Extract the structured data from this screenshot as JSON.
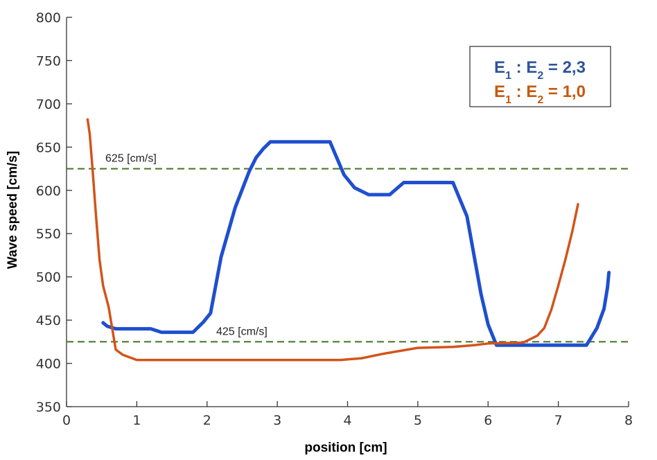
{
  "chart_data": {
    "type": "line",
    "title": "",
    "xlabel": "position [cm]",
    "ylabel": "Wave speed [cm/s]",
    "xlim": [
      0,
      8
    ],
    "ylim": [
      350,
      800
    ],
    "xticks": [
      0,
      1,
      2,
      3,
      4,
      5,
      6,
      7,
      8
    ],
    "yticks": [
      350,
      400,
      450,
      500,
      550,
      600,
      650,
      700,
      750,
      800
    ],
    "grid": false,
    "legend_position": "top-right",
    "legend_entries": [
      {
        "parts": [
          "E",
          "1",
          " : E",
          "2",
          " = 2,3"
        ],
        "color": "#2e5597"
      },
      {
        "parts": [
          "E",
          "1",
          " : E",
          "2",
          " = 1,0"
        ],
        "color": "#c5590f"
      }
    ],
    "reference_lines": [
      {
        "y": 625,
        "label": "625 [cm/s]",
        "color": "#4a7a2a",
        "style": "dashed"
      },
      {
        "y": 425,
        "label": "425 [cm/s]",
        "color": "#4a7a2a",
        "style": "dashed"
      }
    ],
    "series": [
      {
        "color": "#1f4fd0",
        "x": [
          0.52,
          0.58,
          0.7,
          1.0,
          1.2,
          1.35,
          1.5,
          1.8,
          1.95,
          2.05,
          2.2,
          2.4,
          2.6,
          2.7,
          2.8,
          2.9,
          3.1,
          3.5,
          3.75,
          3.85,
          3.95,
          4.1,
          4.3,
          4.6,
          4.8,
          5.0,
          5.5,
          5.7,
          5.9,
          6.0,
          6.12,
          6.2,
          6.6,
          7.0,
          7.2,
          7.4,
          7.55,
          7.65,
          7.7,
          7.72
        ],
        "y": [
          447,
          443,
          440,
          440,
          440,
          436,
          436,
          436,
          448,
          458,
          523,
          580,
          622,
          638,
          648,
          656,
          656,
          656,
          656,
          637,
          618,
          603,
          595,
          595,
          609,
          609,
          609,
          570,
          480,
          445,
          421,
          421,
          421,
          421,
          421,
          421,
          441,
          463,
          488,
          505
        ]
      },
      {
        "color": "#d2541a",
        "x": [
          0.3,
          0.33,
          0.37,
          0.42,
          0.47,
          0.52,
          0.6,
          0.7,
          0.8,
          1.0,
          1.5,
          2.0,
          3.0,
          3.9,
          4.2,
          4.5,
          5.0,
          5.5,
          5.8,
          6.0,
          6.5,
          6.7,
          6.8,
          6.9,
          7.0,
          7.1,
          7.2,
          7.28
        ],
        "y": [
          682,
          665,
          625,
          570,
          520,
          490,
          465,
          416,
          410,
          404,
          404,
          404,
          404,
          404,
          406,
          411,
          418,
          419,
          421,
          423,
          424,
          432,
          441,
          462,
          490,
          520,
          553,
          584
        ]
      }
    ]
  }
}
